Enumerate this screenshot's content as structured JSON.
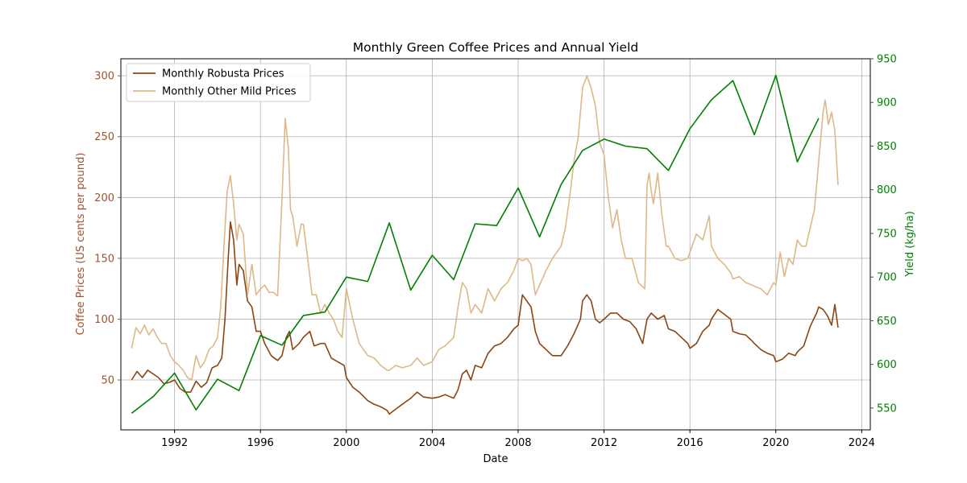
{
  "chart_data": {
    "type": "line",
    "title": "Monthly Green Coffee Prices and Annual Yield",
    "xlabel": "Date",
    "ylabel_left": "Coffee Prices (US cents per pound)",
    "ylabel_right": "Yield (kg/ha)",
    "xlim": [
      1989.5,
      2024.4
    ],
    "ylim_left": [
      9,
      314
    ],
    "ylim_right": [
      525,
      950
    ],
    "x_ticks": [
      1992,
      1996,
      2000,
      2004,
      2008,
      2012,
      2016,
      2020,
      2024
    ],
    "y_left_ticks": [
      50,
      100,
      150,
      200,
      250,
      300
    ],
    "y_right_ticks": [
      550,
      600,
      650,
      700,
      750,
      800,
      850,
      900,
      950
    ],
    "grid": true,
    "legend": {
      "placement": "top-left",
      "entries": [
        "Monthly Robusta Prices",
        "Monthly Other Mild Prices"
      ]
    },
    "colors": {
      "robusta": "#8B4513",
      "other_mild": "#DEB887",
      "yield": "#008000",
      "left_axis": "#A0522D",
      "right_axis": "#008000"
    },
    "series": [
      {
        "name": "Monthly Robusta Prices",
        "axis": "left",
        "x": [
          1990.0,
          1990.25,
          1990.5,
          1990.75,
          1991.0,
          1991.25,
          1991.5,
          1991.75,
          1992.0,
          1992.25,
          1992.5,
          1992.75,
          1993.0,
          1993.25,
          1993.5,
          1993.75,
          1994.0,
          1994.2,
          1994.35,
          1994.5,
          1994.6,
          1994.75,
          1994.9,
          1995.0,
          1995.2,
          1995.4,
          1995.6,
          1995.8,
          1996.0,
          1996.2,
          1996.5,
          1996.8,
          1997.0,
          1997.2,
          1997.35,
          1997.5,
          1997.8,
          1998.0,
          1998.3,
          1998.5,
          1998.8,
          1999.0,
          1999.3,
          1999.6,
          1999.9,
          2000.0,
          2000.3,
          2000.6,
          2001.0,
          2001.3,
          2001.6,
          2001.9,
          2002.0,
          2002.3,
          2002.6,
          2003.0,
          2003.3,
          2003.6,
          2004.0,
          2004.3,
          2004.6,
          2005.0,
          2005.2,
          2005.4,
          2005.6,
          2005.8,
          2006.0,
          2006.3,
          2006.6,
          2006.9,
          2007.2,
          2007.5,
          2007.8,
          2008.0,
          2008.2,
          2008.4,
          2008.6,
          2008.8,
          2009.0,
          2009.3,
          2009.6,
          2010.0,
          2010.3,
          2010.6,
          2010.9,
          2011.0,
          2011.2,
          2011.4,
          2011.6,
          2011.8,
          2012.0,
          2012.3,
          2012.6,
          2012.9,
          2013.2,
          2013.5,
          2013.8,
          2014.0,
          2014.2,
          2014.5,
          2014.8,
          2015.0,
          2015.3,
          2015.6,
          2015.9,
          2016.0,
          2016.3,
          2016.6,
          2016.9,
          2017.0,
          2017.3,
          2017.6,
          2017.9,
          2018.0,
          2018.3,
          2018.6,
          2018.9,
          2019.0,
          2019.3,
          2019.6,
          2019.9,
          2020.0,
          2020.3,
          2020.6,
          2020.9,
          2021.0,
          2021.3,
          2021.6,
          2021.9,
          2022.0,
          2022.2,
          2022.4,
          2022.6,
          2022.75,
          2022.9
        ],
        "values": [
          50,
          57,
          52,
          58,
          55,
          52,
          47,
          48,
          50,
          43,
          40,
          40,
          49,
          44,
          48,
          60,
          62,
          68,
          100,
          150,
          180,
          165,
          128,
          145,
          140,
          115,
          110,
          90,
          90,
          80,
          70,
          66,
          70,
          85,
          90,
          75,
          80,
          85,
          90,
          78,
          80,
          80,
          68,
          65,
          62,
          52,
          44,
          40,
          33,
          30,
          28,
          25,
          22,
          26,
          30,
          35,
          40,
          36,
          35,
          36,
          38,
          35,
          42,
          55,
          58,
          50,
          62,
          60,
          72,
          78,
          80,
          85,
          92,
          95,
          120,
          115,
          110,
          90,
          80,
          75,
          70,
          70,
          78,
          88,
          100,
          115,
          120,
          115,
          100,
          97,
          100,
          105,
          105,
          100,
          98,
          92,
          80,
          100,
          105,
          100,
          103,
          92,
          90,
          85,
          80,
          76,
          80,
          90,
          95,
          100,
          108,
          104,
          100,
          90,
          88,
          87,
          82,
          80,
          75,
          72,
          70,
          65,
          67,
          72,
          70,
          73,
          78,
          94,
          105,
          110,
          108,
          103,
          95,
          112,
          93
        ]
      },
      {
        "name": "Monthly Other Mild Prices",
        "axis": "left",
        "x": [
          1990.0,
          1990.2,
          1990.4,
          1990.6,
          1990.8,
          1991.0,
          1991.2,
          1991.4,
          1991.6,
          1991.8,
          1992.0,
          1992.2,
          1992.4,
          1992.6,
          1992.8,
          1993.0,
          1993.2,
          1993.4,
          1993.6,
          1993.8,
          1994.0,
          1994.15,
          1994.3,
          1994.45,
          1994.6,
          1994.75,
          1994.9,
          1995.0,
          1995.2,
          1995.4,
          1995.6,
          1995.8,
          1996.0,
          1996.2,
          1996.4,
          1996.6,
          1996.8,
          1997.0,
          1997.15,
          1997.3,
          1997.4,
          1997.5,
          1997.7,
          1997.9,
          1998.0,
          1998.2,
          1998.4,
          1998.6,
          1998.8,
          1999.0,
          1999.2,
          1999.4,
          1999.6,
          1999.8,
          2000.0,
          2000.3,
          2000.6,
          2001.0,
          2001.3,
          2001.6,
          2001.9,
          2002.0,
          2002.3,
          2002.6,
          2003.0,
          2003.3,
          2003.6,
          2004.0,
          2004.3,
          2004.6,
          2005.0,
          2005.2,
          2005.4,
          2005.6,
          2005.8,
          2006.0,
          2006.3,
          2006.6,
          2006.9,
          2007.2,
          2007.5,
          2007.8,
          2008.0,
          2008.2,
          2008.4,
          2008.6,
          2008.8,
          2009.0,
          2009.3,
          2009.6,
          2010.0,
          2010.2,
          2010.4,
          2010.6,
          2010.8,
          2011.0,
          2011.2,
          2011.4,
          2011.6,
          2011.8,
          2012.0,
          2012.2,
          2012.4,
          2012.6,
          2012.8,
          2013.0,
          2013.3,
          2013.6,
          2013.9,
          2014.0,
          2014.1,
          2014.2,
          2014.3,
          2014.5,
          2014.7,
          2014.9,
          2015.0,
          2015.3,
          2015.6,
          2015.9,
          2016.0,
          2016.3,
          2016.6,
          2016.9,
          2017.0,
          2017.3,
          2017.6,
          2017.9,
          2018.0,
          2018.3,
          2018.6,
          2018.9,
          2019.0,
          2019.3,
          2019.6,
          2019.9,
          2020.0,
          2020.2,
          2020.4,
          2020.6,
          2020.8,
          2021.0,
          2021.2,
          2021.4,
          2021.6,
          2021.8,
          2022.0,
          2022.1,
          2022.2,
          2022.3,
          2022.45,
          2022.6,
          2022.75,
          2022.9
        ],
        "values": [
          76,
          93,
          88,
          95,
          87,
          92,
          85,
          80,
          80,
          70,
          65,
          62,
          58,
          52,
          50,
          70,
          60,
          65,
          75,
          78,
          85,
          110,
          160,
          205,
          218,
          195,
          165,
          178,
          170,
          120,
          145,
          120,
          125,
          128,
          122,
          122,
          119,
          198,
          265,
          240,
          190,
          185,
          160,
          178,
          178,
          150,
          120,
          120,
          105,
          112,
          105,
          100,
          90,
          85,
          125,
          100,
          80,
          70,
          68,
          62,
          58,
          58,
          62,
          60,
          62,
          68,
          62,
          65,
          75,
          78,
          85,
          110,
          130,
          125,
          105,
          112,
          105,
          125,
          115,
          125,
          130,
          140,
          150,
          148,
          150,
          145,
          120,
          128,
          140,
          150,
          160,
          175,
          200,
          230,
          250,
          290,
          300,
          290,
          275,
          245,
          235,
          200,
          175,
          190,
          165,
          150,
          150,
          130,
          125,
          210,
          220,
          205,
          195,
          220,
          185,
          160,
          160,
          150,
          148,
          150,
          155,
          170,
          165,
          185,
          160,
          150,
          145,
          138,
          133,
          135,
          130,
          128,
          127,
          125,
          120,
          130,
          128,
          155,
          135,
          150,
          145,
          165,
          160,
          160,
          175,
          190,
          230,
          250,
          270,
          280,
          260,
          270,
          255,
          210
        ]
      },
      {
        "name": "",
        "axis": "right",
        "x": [
          1990,
          1991,
          1992,
          1993,
          1994,
          1995,
          1996,
          1997,
          1998,
          1999,
          2000,
          2001,
          2002,
          2003,
          2004,
          2005,
          2006,
          2007,
          2008,
          2009,
          2010,
          2011,
          2012,
          2013,
          2014,
          2015,
          2016,
          2017,
          2018,
          2019,
          2020,
          2021,
          2022
        ],
        "values": [
          544,
          563,
          590,
          548,
          583,
          570,
          633,
          622,
          656,
          660,
          700,
          695,
          762,
          685,
          725,
          697,
          761,
          759,
          802,
          746,
          806,
          845,
          858,
          850,
          847,
          822,
          870,
          903,
          925,
          863,
          931,
          832,
          882
        ]
      }
    ]
  }
}
